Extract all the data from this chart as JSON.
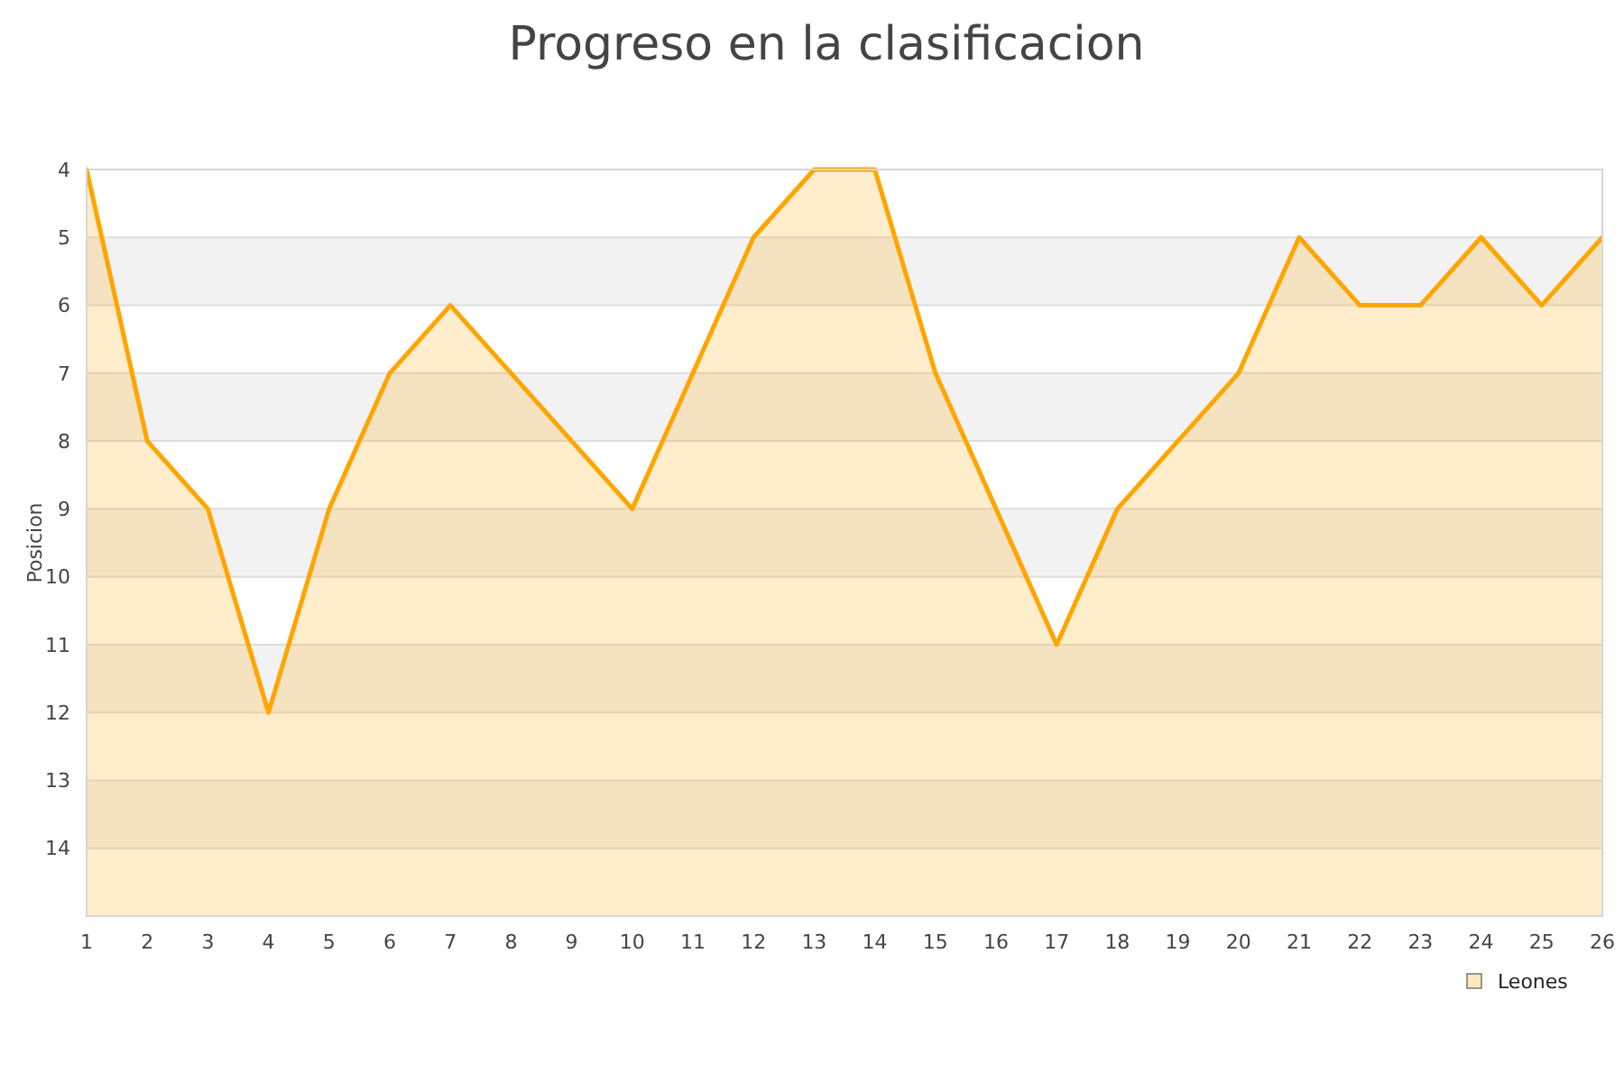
{
  "chart_data": {
    "type": "area",
    "title": "Progreso en la clasificacion",
    "ylabel": "Posicion",
    "x": [
      1,
      2,
      3,
      4,
      5,
      6,
      7,
      8,
      9,
      10,
      11,
      12,
      13,
      14,
      15,
      16,
      17,
      18,
      19,
      20,
      21,
      22,
      23,
      24,
      25,
      26
    ],
    "series": [
      {
        "name": "Leones",
        "color": "#ffa500",
        "values": [
          4,
          8,
          9,
          12,
          9,
          7,
          6,
          7,
          8,
          9,
          7,
          5,
          4,
          4,
          7,
          9,
          11,
          9,
          8,
          7,
          5,
          6,
          6,
          5,
          6,
          5
        ]
      }
    ],
    "xlim": [
      1,
      26
    ],
    "xticks": [
      1,
      2,
      3,
      4,
      5,
      6,
      7,
      8,
      9,
      10,
      11,
      12,
      13,
      14,
      15,
      16,
      17,
      18,
      19,
      20,
      21,
      22,
      23,
      24,
      25,
      26
    ],
    "ylim": [
      15,
      4
    ],
    "yticks": [
      4,
      5,
      6,
      7,
      8,
      9,
      10,
      11,
      12,
      13,
      14
    ],
    "bands": [
      {
        "axis": "y",
        "from": 5,
        "to": 6,
        "color": "#f2f2f2"
      },
      {
        "axis": "y",
        "from": 7,
        "to": 8,
        "color": "#f2f2f2"
      },
      {
        "axis": "y",
        "from": 9,
        "to": 10,
        "color": "#f2f2f2"
      },
      {
        "axis": "y",
        "from": 11,
        "to": 12,
        "color": "#f2f2f2"
      },
      {
        "axis": "y",
        "from": 13,
        "to": 14,
        "color": "#f2f2f2"
      }
    ],
    "grid": "y",
    "legend": "bottom right"
  }
}
